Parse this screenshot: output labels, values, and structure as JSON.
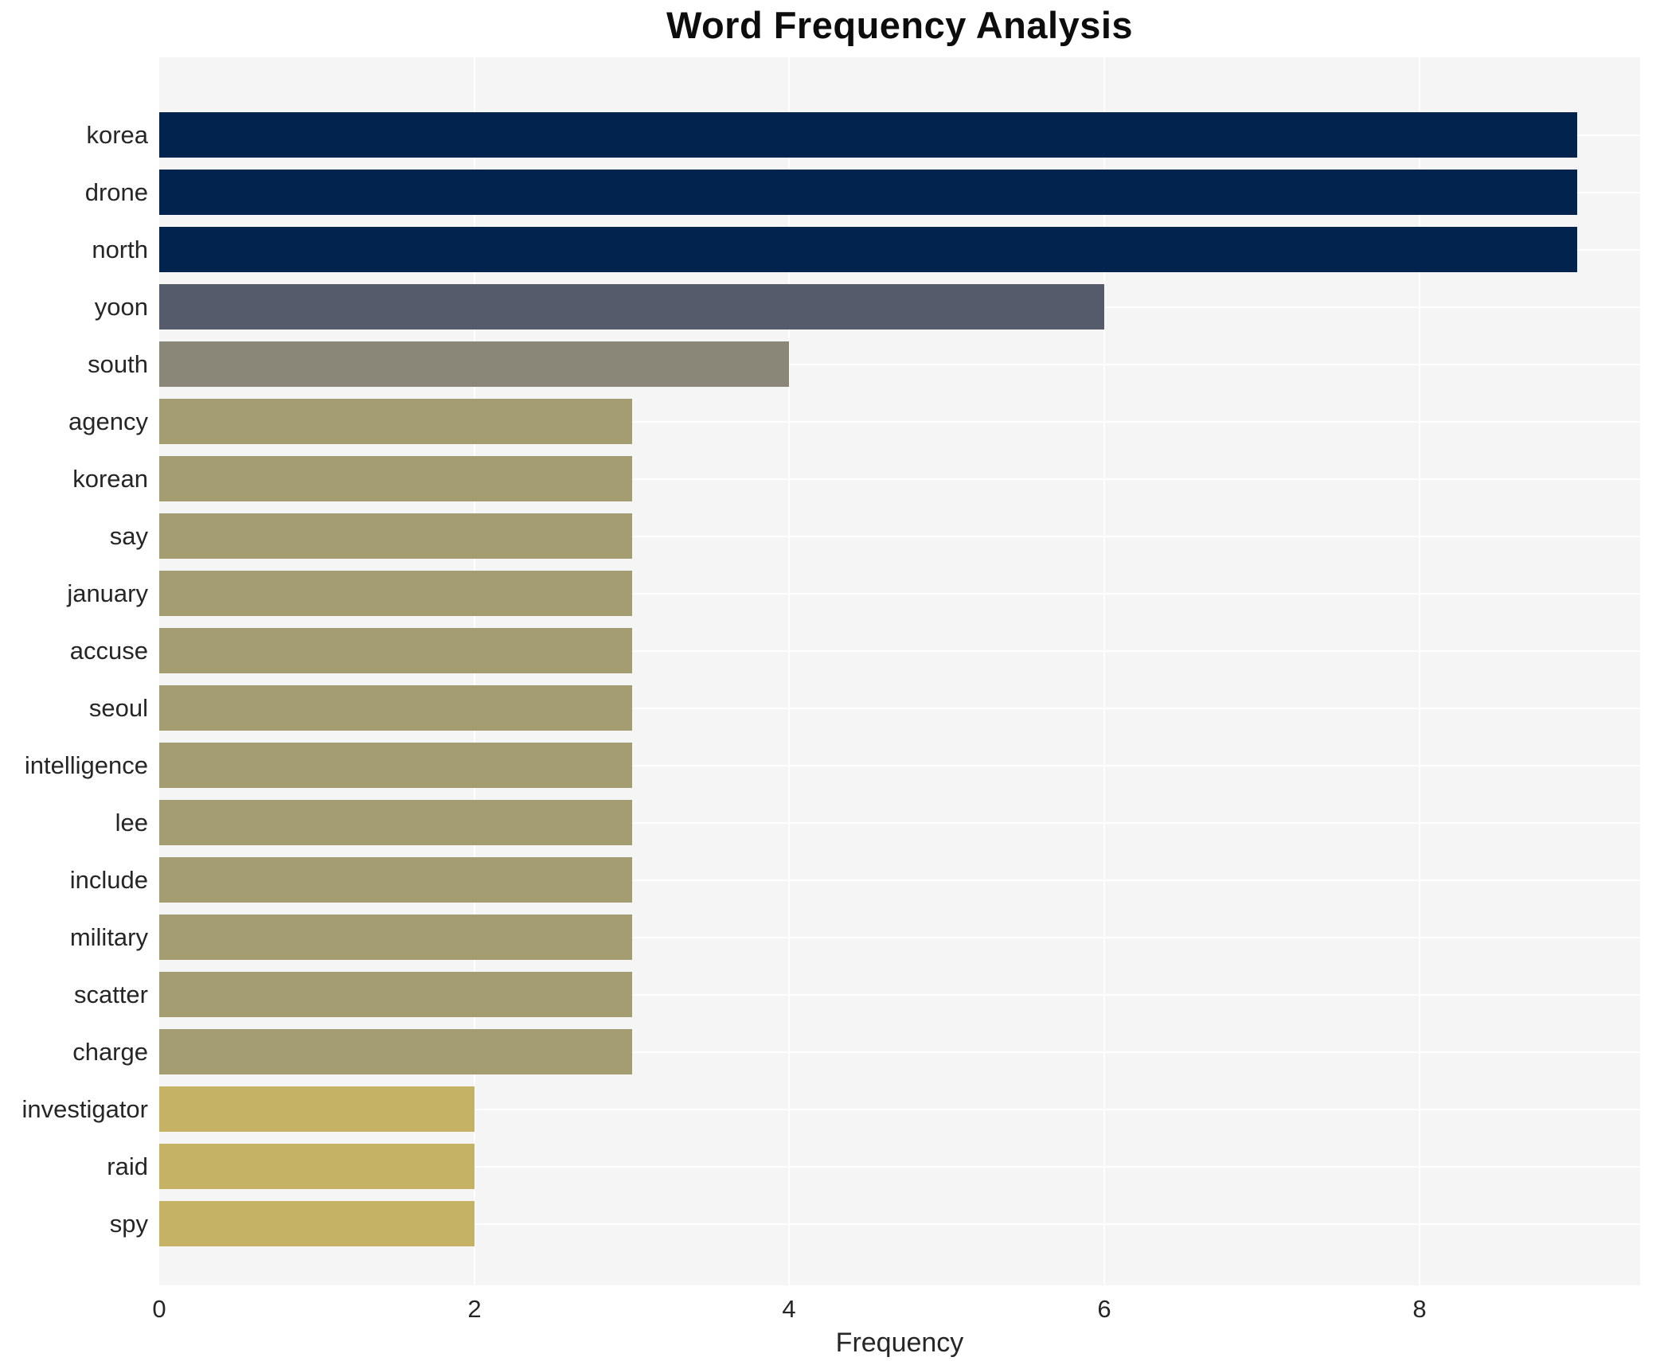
{
  "page": {
    "title": "Word Frequency Analysis"
  },
  "chart_data": {
    "type": "bar",
    "orientation": "horizontal",
    "title": "Word Frequency Analysis",
    "xlabel": "Frequency",
    "ylabel": "",
    "categories": [
      "korea",
      "drone",
      "north",
      "yoon",
      "south",
      "agency",
      "korean",
      "say",
      "january",
      "accuse",
      "seoul",
      "intelligence",
      "lee",
      "include",
      "military",
      "scatter",
      "charge",
      "investigator",
      "raid",
      "spy"
    ],
    "values": [
      9,
      9,
      9,
      6,
      4,
      3,
      3,
      3,
      3,
      3,
      3,
      3,
      3,
      3,
      3,
      3,
      3,
      2,
      2,
      2
    ],
    "xlim": [
      0,
      9.4
    ],
    "x_ticks": [
      0,
      2,
      4,
      6,
      8
    ],
    "grid": true,
    "legend": false,
    "value_colors": {
      "9": "#02234d",
      "6": "#565b6c",
      "4": "#8a8778",
      "3": "#a59d72",
      "2": "#c5b264"
    },
    "colors": {
      "plot_bg": "#f5f5f6",
      "gridline": "#ffffff",
      "title_text": "#0d0d0d",
      "axis_text": "#262626",
      "page_bg": "#ffffff"
    }
  }
}
